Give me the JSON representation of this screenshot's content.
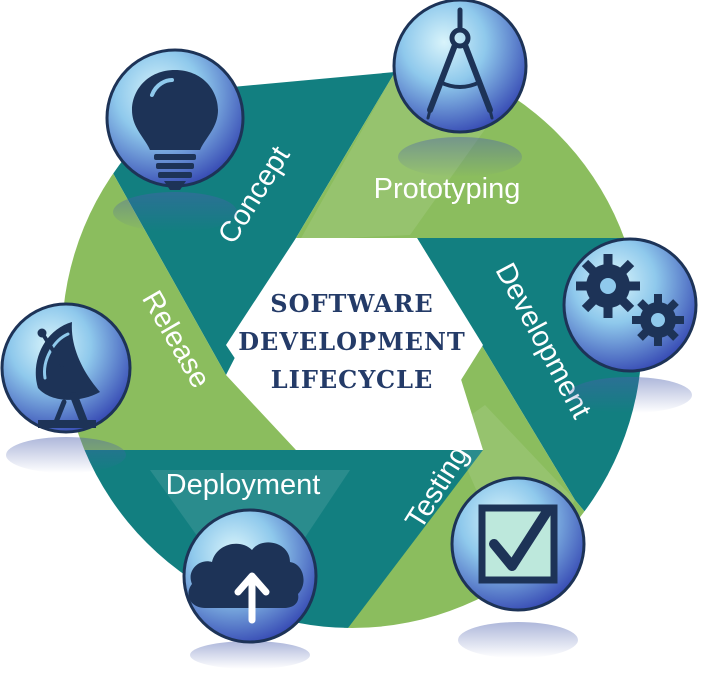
{
  "title": [
    "SOFTWARE",
    "DEVELOPMENT",
    "LIFECYCLE"
  ],
  "stages": [
    {
      "id": "concept",
      "label": "Concept",
      "icon": "lightbulb-icon"
    },
    {
      "id": "prototyping",
      "label": "Prototyping",
      "icon": "compass-icon"
    },
    {
      "id": "development",
      "label": "Development",
      "icon": "gears-icon"
    },
    {
      "id": "testing",
      "label": "Testing",
      "icon": "checkbox-icon"
    },
    {
      "id": "deployment",
      "label": "Deployment",
      "icon": "cloud-upload-icon"
    },
    {
      "id": "release",
      "label": "Release",
      "icon": "satellite-dish-icon"
    }
  ],
  "colors": {
    "teal": "#127f80",
    "green": "#8bbd5e",
    "icon_dark": "#1d3357",
    "badge_light": "#b5e2f3",
    "badge_dark": "#3d52b4",
    "text": "#ffffff",
    "title": "#243b68"
  }
}
